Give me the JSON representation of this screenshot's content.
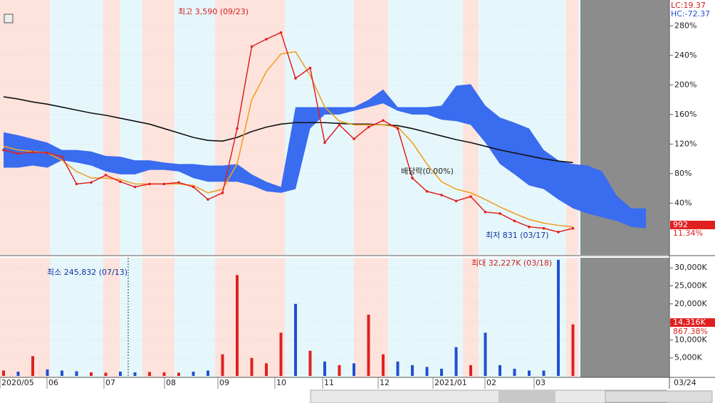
{
  "chart_data": [
    {
      "type": "line",
      "ylim": [
        -30,
        315
      ],
      "yticks": [
        {
          "value": 40,
          "label": "40%"
        },
        {
          "value": 80,
          "label": "80%"
        },
        {
          "value": 120,
          "label": "120%"
        },
        {
          "value": 160,
          "label": "160%"
        },
        {
          "value": 200,
          "label": "200%"
        },
        {
          "value": 240,
          "label": "240%"
        },
        {
          "value": 280,
          "label": "280%"
        }
      ],
      "series": [
        {
          "name": "price",
          "color": "#e02020",
          "values": [
            112,
            107,
            109,
            108,
            103,
            66,
            68,
            78,
            69,
            62,
            66,
            66,
            68,
            62,
            45,
            54,
            141,
            252,
            262,
            271,
            209,
            223,
            122,
            146,
            127,
            143,
            152,
            141,
            74,
            56,
            51,
            43,
            49,
            28,
            26,
            16,
            8,
            6,
            1,
            6,
            null,
            null,
            null,
            null,
            null
          ]
        },
        {
          "name": "ma-short",
          "color": "#f0a020",
          "values": [
            117,
            112,
            110,
            108,
            98,
            83,
            74,
            74,
            72,
            66,
            66,
            66,
            66,
            64,
            54,
            59,
            93,
            180,
            218,
            242,
            245,
            213,
            170,
            151,
            146,
            146,
            146,
            143,
            122,
            93,
            69,
            59,
            54,
            45,
            35,
            26,
            18,
            13,
            10,
            8,
            null,
            null,
            null,
            null,
            null
          ]
        },
        {
          "name": "ma-long",
          "color": "#111111",
          "values": [
            184,
            181,
            177,
            174,
            170,
            166,
            162,
            159,
            155,
            151,
            147,
            141,
            135,
            129,
            125,
            124,
            129,
            137,
            143,
            147,
            149,
            149,
            149,
            148,
            147,
            147,
            146,
            145,
            141,
            136,
            131,
            126,
            122,
            117,
            112,
            108,
            104,
            100,
            97,
            95,
            null,
            null,
            null,
            null,
            null
          ]
        },
        {
          "name": "cloud-upper",
          "color": "#3a6cf0",
          "values": [
            136,
            132,
            127,
            122,
            112,
            112,
            110,
            104,
            103,
            98,
            98,
            95,
            93,
            93,
            91,
            91,
            93,
            79,
            69,
            62,
            170,
            170,
            170,
            170,
            170,
            180,
            194,
            170,
            170,
            170,
            172,
            199,
            201,
            172,
            156,
            149,
            141,
            112,
            98,
            93,
            91,
            83,
            50,
            33,
            33
          ]
        },
        {
          "name": "cloud-lower",
          "color": "#3a6cf0",
          "values": [
            88,
            88,
            91,
            88,
            98,
            95,
            91,
            83,
            79,
            79,
            85,
            85,
            83,
            74,
            69,
            69,
            69,
            64,
            56,
            54,
            59,
            141,
            160,
            160,
            165,
            170,
            175,
            165,
            160,
            160,
            153,
            151,
            146,
            122,
            93,
            79,
            64,
            59,
            45,
            33,
            26,
            21,
            16,
            8,
            6
          ]
        }
      ],
      "annotations": [
        "최고 3,590 (09/23)",
        "최저 831 (03/17)",
        "배당락(0.00%)"
      ],
      "last_price": "992",
      "last_change": "11.34%"
    },
    {
      "type": "bar",
      "ylim": [
        0,
        32800
      ],
      "yticks": [
        {
          "value": 5000,
          "label": "5,000K"
        },
        {
          "value": 10000,
          "label": "10,000K"
        },
        {
          "value": 15000,
          "label": "15,000K"
        },
        {
          "value": 20000,
          "label": "20,000K"
        },
        {
          "value": 25000,
          "label": "25,000K"
        },
        {
          "value": 30000,
          "label": "30,000K"
        }
      ],
      "values": [
        1500,
        1200,
        5500,
        1800,
        1500,
        1300,
        1000,
        900,
        1200,
        1000,
        1100,
        1000,
        900,
        1200,
        1500,
        6000,
        28000,
        5000,
        3500,
        12000,
        20000,
        7000,
        4000,
        3000,
        3500,
        17000,
        6000,
        4000,
        3000,
        2500,
        2000,
        8000,
        3000,
        12000,
        3000,
        2000,
        1500,
        1500,
        32227,
        14316
      ],
      "annotations": [
        "최소 245,832 (07/13)",
        "최대 32,227K (03/18)"
      ],
      "last_volume": "14,316K",
      "last_change": "867.38%"
    }
  ],
  "time_axis": [
    "2020/05",
    "06",
    "07",
    "08",
    "09",
    "10",
    "11",
    "12",
    "2021/01",
    "02",
    "03"
  ],
  "end_date": "03/24",
  "lc": "LC:19.37",
  "hc": "HC:-72.37"
}
